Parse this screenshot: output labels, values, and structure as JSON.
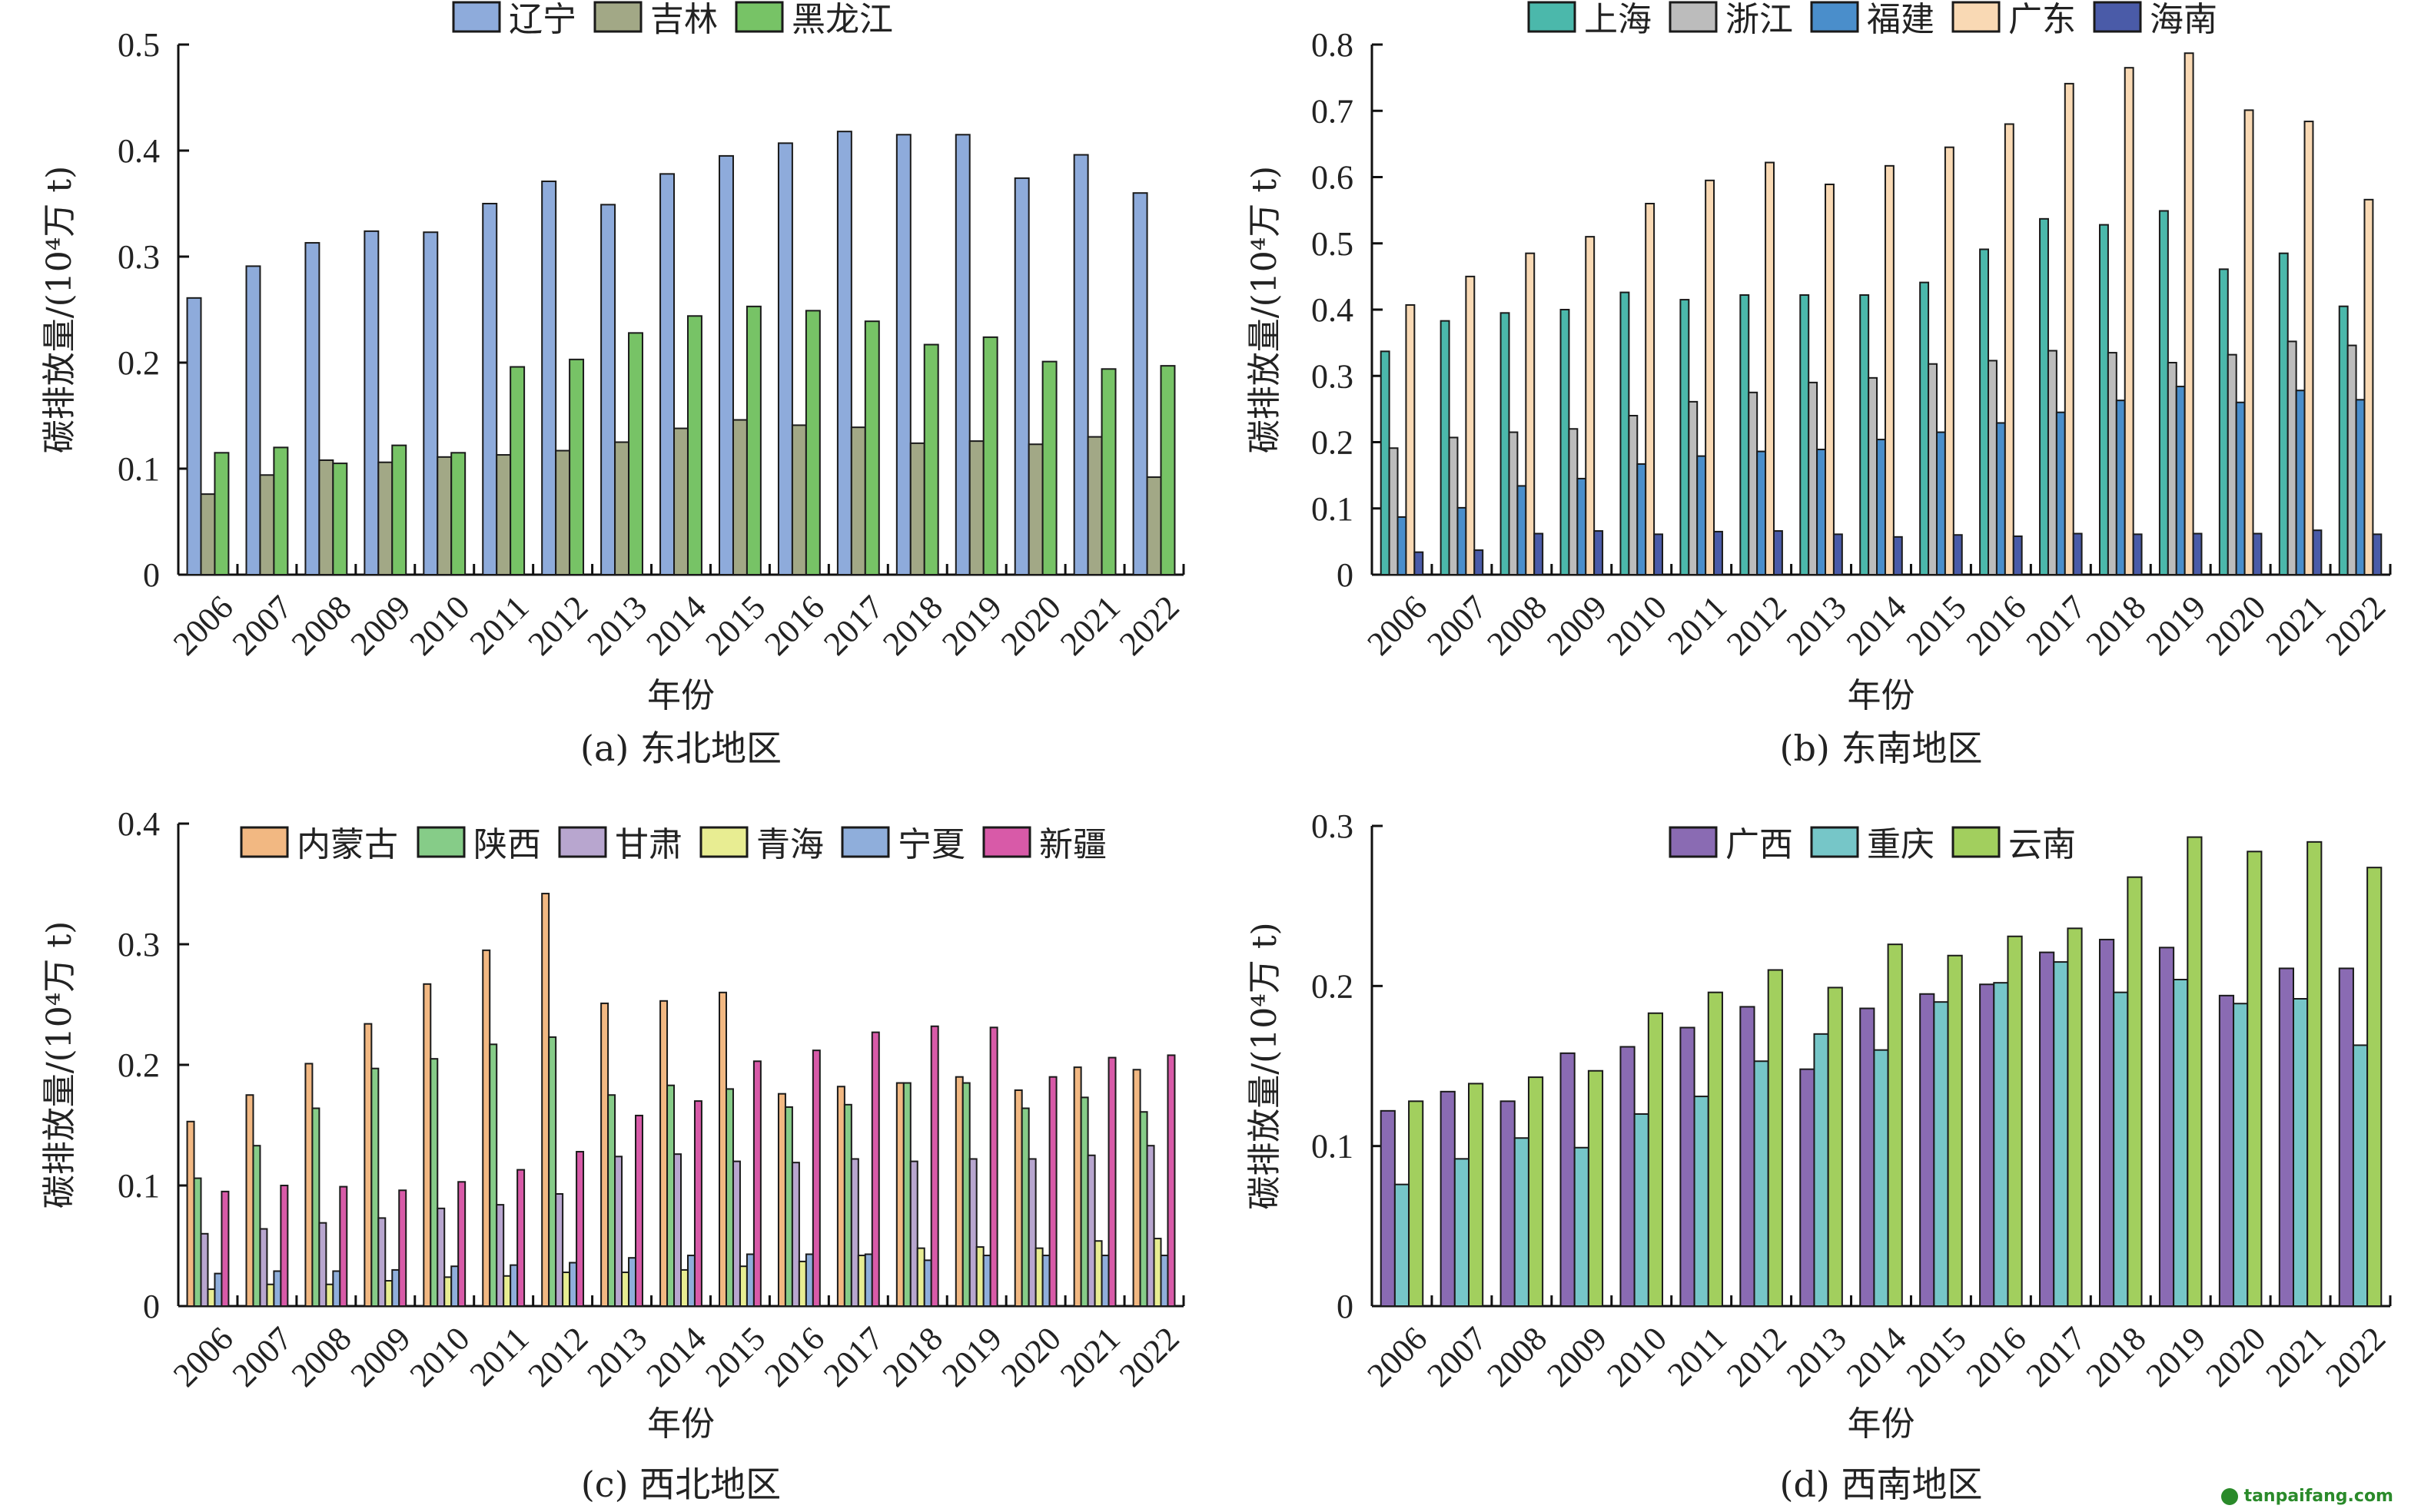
{
  "chart_data": [
    {
      "type": "bar",
      "title": "",
      "caption": "(a) 东北地区",
      "xlabel": "年份",
      "ylabel": "碳排放量/(10⁴万 t)",
      "ylim": [
        0,
        0.5
      ],
      "yticks": [
        "0",
        "0.1",
        "0.2",
        "0.3",
        "0.4",
        "0.5"
      ],
      "legend_position": "top-center",
      "categories": [
        "2006",
        "2007",
        "2008",
        "2009",
        "2010",
        "2011",
        "2012",
        "2013",
        "2014",
        "2015",
        "2016",
        "2017",
        "2018",
        "2019",
        "2020",
        "2021",
        "2022"
      ],
      "series": [
        {
          "name": "辽宁",
          "color": "#8eabdb",
          "values": [
            0.261,
            0.291,
            0.313,
            0.324,
            0.323,
            0.35,
            0.371,
            0.349,
            0.378,
            0.395,
            0.407,
            0.418,
            0.415,
            0.415,
            0.374,
            0.396,
            0.36
          ]
        },
        {
          "name": "吉林",
          "color": "#a2a886",
          "values": [
            0.076,
            0.094,
            0.108,
            0.106,
            0.111,
            0.113,
            0.117,
            0.125,
            0.138,
            0.146,
            0.141,
            0.139,
            0.124,
            0.126,
            0.123,
            0.13,
            0.092
          ]
        },
        {
          "name": "黑龙江",
          "color": "#77c366",
          "values": [
            0.115,
            0.12,
            0.105,
            0.122,
            0.115,
            0.196,
            0.203,
            0.228,
            0.244,
            0.253,
            0.249,
            0.239,
            0.217,
            0.224,
            0.201,
            0.194,
            0.197
          ]
        }
      ]
    },
    {
      "type": "bar",
      "title": "",
      "caption": "(b) 东南地区",
      "xlabel": "年份",
      "ylabel": "碳排放量/(10⁴万 t)",
      "ylim": [
        0,
        0.8
      ],
      "yticks": [
        "0",
        "0.1",
        "0.2",
        "0.3",
        "0.4",
        "0.5",
        "0.6",
        "0.7",
        "0.8"
      ],
      "legend_position": "top-center",
      "categories": [
        "2006",
        "2007",
        "2008",
        "2009",
        "2010",
        "2011",
        "2012",
        "2013",
        "2014",
        "2015",
        "2016",
        "2017",
        "2018",
        "2019",
        "2020",
        "2021",
        "2022"
      ],
      "series": [
        {
          "name": "上海",
          "color": "#4bb8ab",
          "values": [
            0.337,
            0.383,
            0.395,
            0.4,
            0.426,
            0.415,
            0.422,
            0.422,
            0.422,
            0.441,
            0.491,
            0.537,
            0.528,
            0.549,
            0.461,
            0.485,
            0.405
          ]
        },
        {
          "name": "浙江",
          "color": "#bcbcbc",
          "values": [
            0.191,
            0.207,
            0.215,
            0.22,
            0.24,
            0.261,
            0.275,
            0.29,
            0.297,
            0.318,
            0.323,
            0.338,
            0.335,
            0.32,
            0.332,
            0.352,
            0.346
          ]
        },
        {
          "name": "福建",
          "color": "#4a8ecb",
          "values": [
            0.087,
            0.101,
            0.134,
            0.145,
            0.167,
            0.179,
            0.186,
            0.189,
            0.204,
            0.215,
            0.229,
            0.245,
            0.263,
            0.284,
            0.26,
            0.278,
            0.264
          ]
        },
        {
          "name": "广东",
          "color": "#f9d9b4",
          "values": [
            0.407,
            0.45,
            0.485,
            0.51,
            0.56,
            0.595,
            0.622,
            0.589,
            0.617,
            0.645,
            0.68,
            0.741,
            0.765,
            0.787,
            0.701,
            0.684,
            0.566
          ]
        },
        {
          "name": "海南",
          "color": "#4a5ba8",
          "values": [
            0.034,
            0.037,
            0.062,
            0.066,
            0.061,
            0.065,
            0.066,
            0.061,
            0.057,
            0.06,
            0.058,
            0.062,
            0.061,
            0.062,
            0.062,
            0.067,
            0.061
          ]
        }
      ]
    },
    {
      "type": "bar",
      "title": "",
      "caption": "(c) 西北地区",
      "xlabel": "年份",
      "ylabel": "碳排放量/(10⁴万 t)",
      "ylim": [
        0,
        0.4
      ],
      "yticks": [
        "0",
        "0.1",
        "0.2",
        "0.3",
        "0.4"
      ],
      "legend_position": "top-center",
      "categories": [
        "2006",
        "2007",
        "2008",
        "2009",
        "2010",
        "2011",
        "2012",
        "2013",
        "2014",
        "2015",
        "2016",
        "2017",
        "2018",
        "2019",
        "2020",
        "2021",
        "2022"
      ],
      "series": [
        {
          "name": "内蒙古",
          "color": "#f2b882",
          "values": [
            0.153,
            0.175,
            0.201,
            0.234,
            0.267,
            0.295,
            0.342,
            0.251,
            0.253,
            0.26,
            0.176,
            0.182,
            0.185,
            0.19,
            0.179,
            0.198,
            0.196
          ]
        },
        {
          "name": "陕西",
          "color": "#86cc88",
          "values": [
            0.106,
            0.133,
            0.164,
            0.197,
            0.205,
            0.217,
            0.223,
            0.175,
            0.183,
            0.18,
            0.165,
            0.167,
            0.185,
            0.185,
            0.164,
            0.173,
            0.161
          ]
        },
        {
          "name": "甘肃",
          "color": "#b8a6cf",
          "values": [
            0.06,
            0.064,
            0.069,
            0.073,
            0.081,
            0.084,
            0.093,
            0.124,
            0.126,
            0.12,
            0.119,
            0.122,
            0.12,
            0.122,
            0.122,
            0.125,
            0.133
          ]
        },
        {
          "name": "青海",
          "color": "#e8ed92",
          "values": [
            0.014,
            0.018,
            0.018,
            0.021,
            0.024,
            0.025,
            0.028,
            0.028,
            0.03,
            0.033,
            0.037,
            0.042,
            0.048,
            0.049,
            0.048,
            0.054,
            0.056
          ]
        },
        {
          "name": "宁夏",
          "color": "#8faedb",
          "values": [
            0.027,
            0.029,
            0.029,
            0.03,
            0.033,
            0.034,
            0.036,
            0.04,
            0.042,
            0.043,
            0.043,
            0.043,
            0.038,
            0.042,
            0.042,
            0.042,
            0.042
          ]
        },
        {
          "name": "新疆",
          "color": "#d85aa8",
          "values": [
            0.095,
            0.1,
            0.099,
            0.096,
            0.103,
            0.113,
            0.128,
            0.158,
            0.17,
            0.203,
            0.212,
            0.227,
            0.232,
            0.231,
            0.19,
            0.206,
            0.208
          ]
        }
      ]
    },
    {
      "type": "bar",
      "title": "",
      "caption": "(d) 西南地区",
      "xlabel": "年份",
      "ylabel": "碳排放量/(10⁴万 t)",
      "ylim": [
        0,
        0.3
      ],
      "yticks": [
        "0",
        "0.1",
        "0.2",
        "0.3"
      ],
      "legend_position": "top-center",
      "categories": [
        "2006",
        "2007",
        "2008",
        "2009",
        "2010",
        "2011",
        "2012",
        "2013",
        "2014",
        "2015",
        "2016",
        "2017",
        "2018",
        "2019",
        "2020",
        "2021",
        "2022"
      ],
      "series": [
        {
          "name": "广西",
          "color": "#8a6bb3",
          "values": [
            0.122,
            0.134,
            0.128,
            0.158,
            0.162,
            0.174,
            0.187,
            0.148,
            0.186,
            0.195,
            0.201,
            0.221,
            0.229,
            0.224,
            0.194,
            0.211,
            0.211
          ]
        },
        {
          "name": "重庆",
          "color": "#76c6c8",
          "values": [
            0.076,
            0.092,
            0.105,
            0.099,
            0.12,
            0.131,
            0.153,
            0.17,
            0.16,
            0.19,
            0.202,
            0.215,
            0.196,
            0.204,
            0.189,
            0.192,
            0.163
          ]
        },
        {
          "name": "云南",
          "color": "#a2cf5e",
          "values": [
            0.128,
            0.139,
            0.143,
            0.147,
            0.183,
            0.196,
            0.21,
            0.199,
            0.226,
            0.219,
            0.231,
            0.236,
            0.268,
            0.293,
            0.284,
            0.29,
            0.274
          ]
        }
      ]
    }
  ],
  "watermark": "tanpaifang.com"
}
